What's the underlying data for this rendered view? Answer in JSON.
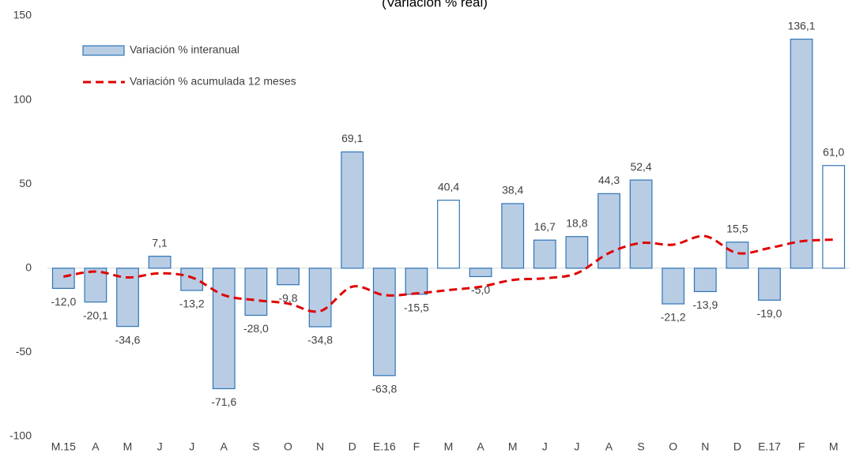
{
  "chart_data": {
    "type": "bar",
    "title": "(Variación % real)",
    "categories": [
      "M.15",
      "A",
      "M",
      "J",
      "J",
      "A",
      "S",
      "O",
      "N",
      "D",
      "E.16",
      "F",
      "M",
      "A",
      "M",
      "J",
      "J",
      "A",
      "S",
      "O",
      "N",
      "D",
      "E.17",
      "F",
      "M"
    ],
    "series": [
      {
        "name": "Variación % interanual",
        "type": "bar",
        "color": "#b8cce4",
        "edge_color": "#2e75b6",
        "values": [
          -12.0,
          -20.1,
          -34.6,
          7.1,
          -13.2,
          -71.6,
          -28.0,
          -9.8,
          -34.8,
          69.1,
          -63.8,
          -15.5,
          40.4,
          -5.0,
          38.4,
          16.7,
          18.8,
          44.3,
          52.4,
          -21.2,
          -13.9,
          15.5,
          -19.0,
          136.1,
          61.0
        ],
        "value_labels": [
          "-12,0",
          "-20,1",
          "-34,6",
          "7,1",
          "-13,2",
          "-71,6",
          "-28,0",
          "-9,8",
          "-34,8",
          "69,1",
          "-63,8",
          "-15,5",
          "40,4",
          "-5,0",
          "38,4",
          "16,7",
          "18,8",
          "44,3",
          "52,4",
          "-21,2",
          "-13,9",
          "15,5",
          "-19,0",
          "136,1",
          "61,0"
        ],
        "colors": [
          "#b8cce4",
          "#b8cce4",
          "#b8cce4",
          "#b8cce4",
          "#b8cce4",
          "#b8cce4",
          "#b8cce4",
          "#b8cce4",
          "#b8cce4",
          "#b8cce4",
          "#b8cce4",
          "#b8cce4",
          "#ffffff",
          "#b8cce4",
          "#b8cce4",
          "#b8cce4",
          "#b8cce4",
          "#b8cce4",
          "#b8cce4",
          "#b8cce4",
          "#b8cce4",
          "#b8cce4",
          "#b8cce4",
          "#b8cce4",
          "#ffffff"
        ]
      },
      {
        "name": "Variación % acumulada 12 meses",
        "type": "line",
        "color": "#e00000",
        "values": [
          -5,
          -2,
          -5.5,
          -3,
          -5.5,
          -16,
          -19,
          -21,
          -25.5,
          -11,
          -16,
          -15,
          -13,
          -11,
          -7,
          -6,
          -3,
          9,
          15,
          14,
          19,
          9,
          12,
          16,
          17
        ]
      }
    ],
    "ylim": [
      -100,
      150
    ],
    "yticks": [
      -100,
      -50,
      0,
      50,
      100,
      150
    ],
    "grid": false
  }
}
